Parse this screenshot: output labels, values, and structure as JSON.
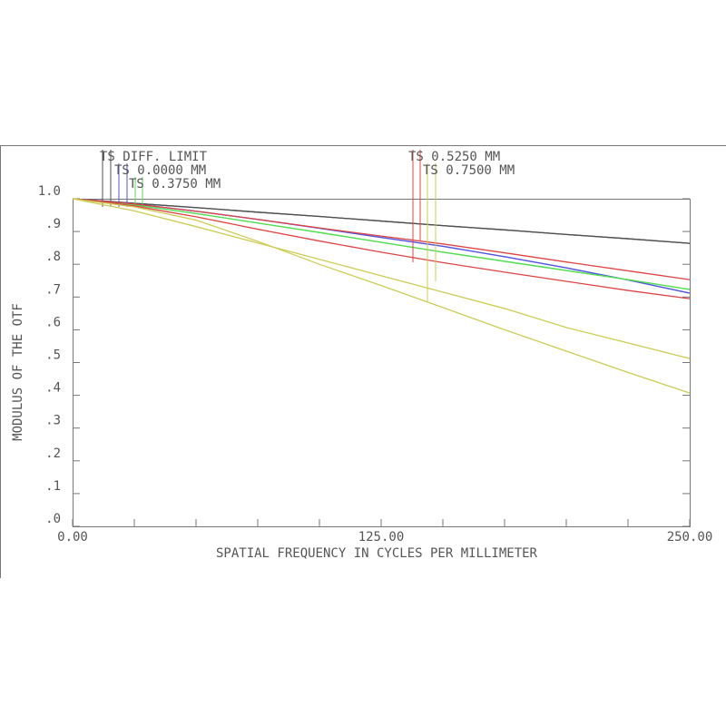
{
  "chart_data": {
    "type": "line",
    "ylabel": "MODULUS OF THE OTF",
    "xlabel": "SPATIAL FREQUENCY IN CYCLES PER MILLIMETER",
    "x": [
      0,
      25,
      50,
      75,
      100,
      125,
      150,
      175,
      200,
      225,
      250
    ],
    "xlim": [
      0,
      250
    ],
    "ylim": [
      0,
      1
    ],
    "xticks": [
      {
        "value": 0,
        "label": "0.00"
      },
      {
        "value": 25
      },
      {
        "value": 50
      },
      {
        "value": 75
      },
      {
        "value": 100
      },
      {
        "value": 125,
        "label": "125.00"
      },
      {
        "value": 150
      },
      {
        "value": 175
      },
      {
        "value": 200
      },
      {
        "value": 225
      },
      {
        "value": 250,
        "label": "250.00"
      }
    ],
    "yticks": [
      {
        "value": 0,
        "label": ".0"
      },
      {
        "value": 0.1,
        "label": ".1"
      },
      {
        "value": 0.2,
        "label": ".2"
      },
      {
        "value": 0.3,
        "label": ".3"
      },
      {
        "value": 0.4,
        "label": ".4"
      },
      {
        "value": 0.5,
        "label": ".5"
      },
      {
        "value": 0.6,
        "label": ".6"
      },
      {
        "value": 0.7,
        "label": ".7"
      },
      {
        "value": 0.8,
        "label": ".8"
      },
      {
        "value": 0.9,
        "label": ".9"
      },
      {
        "value": 1,
        "label": "1.0"
      }
    ],
    "series": [
      {
        "name": "TS DIFF. LIMIT",
        "color": "#505050",
        "values": [
          1,
          0.986,
          0.973,
          0.959,
          0.946,
          0.932,
          0.918,
          0.905,
          0.891,
          0.878,
          0.864
        ],
        "values_sagittal": [
          1,
          0.986,
          0.973,
          0.959,
          0.946,
          0.932,
          0.918,
          0.905,
          0.891,
          0.878,
          0.864
        ]
      },
      {
        "name": "TS 0.0000 MM",
        "color": "#5555dd",
        "values": [
          1,
          0.984,
          0.962,
          0.937,
          0.91,
          0.882,
          0.855,
          0.823,
          0.789,
          0.752,
          0.712
        ],
        "values_sagittal": [
          1,
          0.984,
          0.962,
          0.937,
          0.91,
          0.882,
          0.855,
          0.823,
          0.789,
          0.752,
          0.712
        ]
      },
      {
        "name": "TS 0.3750 MM",
        "color": "#55dd55",
        "values": [
          1,
          0.981,
          0.955,
          0.926,
          0.897,
          0.867,
          0.837,
          0.809,
          0.781,
          0.753,
          0.723
        ],
        "values_sagittal": [
          1,
          0.981,
          0.955,
          0.926,
          0.897,
          0.867,
          0.837,
          0.809,
          0.781,
          0.753,
          0.723
        ]
      },
      {
        "name": "TS 0.5250 MM",
        "color": "#dd4444",
        "values": [
          1,
          0.984,
          0.962,
          0.937,
          0.911,
          0.886,
          0.862,
          0.835,
          0.807,
          0.78,
          0.753
        ],
        "values_sagittal": [
          1,
          0.978,
          0.945,
          0.907,
          0.871,
          0.837,
          0.805,
          0.776,
          0.748,
          0.72,
          0.695
        ]
      },
      {
        "name": "TS 0.7500 MM",
        "color": "#cccc55",
        "values": [
          1,
          0.963,
          0.915,
          0.865,
          0.815,
          0.765,
          0.715,
          0.665,
          0.607,
          0.56,
          0.512
        ],
        "values_sagittal": [
          1,
          0.975,
          0.935,
          0.87,
          0.8,
          0.735,
          0.668,
          0.6,
          0.535,
          0.47,
          0.407
        ]
      }
    ]
  }
}
